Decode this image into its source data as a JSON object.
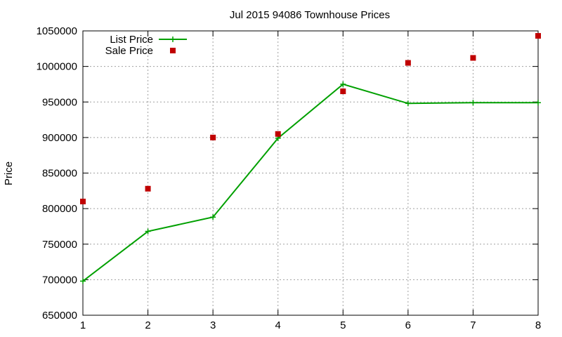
{
  "chart_data": {
    "type": "line",
    "title": "Jul 2015 94086 Townhouse Prices",
    "xlabel": "",
    "ylabel": "Price",
    "x": [
      1,
      2,
      3,
      4,
      5,
      6,
      7,
      8
    ],
    "xlim": [
      1,
      8
    ],
    "ylim": [
      650000,
      1050000
    ],
    "x_ticks": [
      1,
      2,
      3,
      4,
      5,
      6,
      7,
      8
    ],
    "y_ticks": [
      650000,
      700000,
      750000,
      800000,
      850000,
      900000,
      950000,
      1000000,
      1050000
    ],
    "grid": true,
    "legend_position": "top-left",
    "series": [
      {
        "name": "List Price",
        "style": "line-with-plus-points",
        "color": "#00a000",
        "values": [
          698000,
          768000,
          788000,
          899000,
          975000,
          948000,
          949000,
          949000
        ]
      },
      {
        "name": "Sale Price",
        "style": "square-points",
        "color": "#c00000",
        "values": [
          810000,
          828000,
          900000,
          905000,
          965000,
          1005000,
          1012000,
          1043000
        ]
      }
    ]
  }
}
